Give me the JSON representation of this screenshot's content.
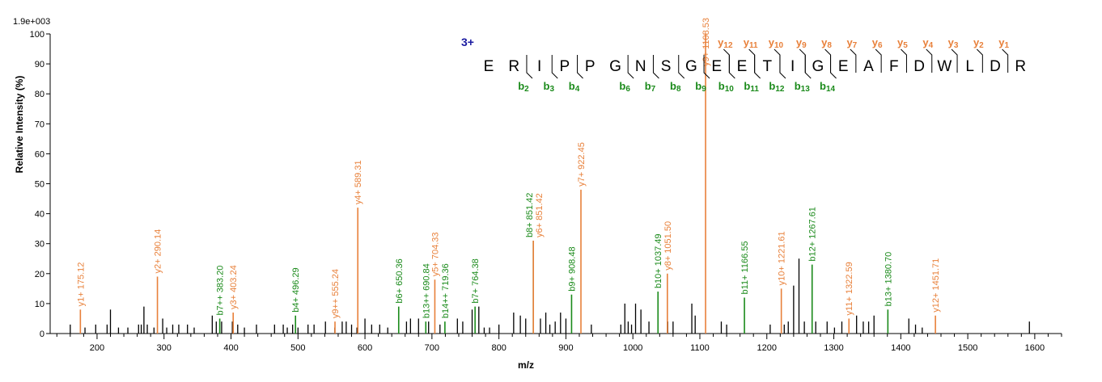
{
  "chart_data": {
    "type": "bar",
    "max_intensity_label": "1.9e+003",
    "xlabel": "m/z",
    "ylabel": "Relative   Intensity (%)",
    "xlim": [
      130,
      1640
    ],
    "ylim": [
      0,
      100
    ],
    "x_ticks": [
      200,
      300,
      400,
      500,
      600,
      700,
      800,
      900,
      1000,
      1100,
      1200,
      1300,
      1400,
      1500,
      1600
    ],
    "y_ticks": [
      0,
      10,
      20,
      30,
      40,
      50,
      60,
      70,
      80,
      90,
      100
    ],
    "colors": {
      "y_ion": "#e8803a",
      "b_ion": "#1a8a1a",
      "unassigned": "#000000",
      "charge": "#1a1aa0"
    },
    "precursor_charge": "3+",
    "sequence": [
      "E",
      "R",
      "I",
      "P",
      "P",
      "G",
      "N",
      "S",
      "G",
      "E",
      "E",
      "T",
      "I",
      "G",
      "E",
      "A",
      "F",
      "D",
      "W",
      "L",
      "D",
      "R"
    ],
    "y_ion_markers": [
      {
        "label": "y",
        "sub": "12",
        "after_index": 9
      },
      {
        "label": "y",
        "sub": "11",
        "after_index": 10
      },
      {
        "label": "y",
        "sub": "10",
        "after_index": 11
      },
      {
        "label": "y",
        "sub": "9",
        "after_index": 12
      },
      {
        "label": "y",
        "sub": "8",
        "after_index": 13
      },
      {
        "label": "y",
        "sub": "7",
        "after_index": 14
      },
      {
        "label": "y",
        "sub": "6",
        "after_index": 15
      },
      {
        "label": "y",
        "sub": "5",
        "after_index": 16
      },
      {
        "label": "y",
        "sub": "4",
        "after_index": 17
      },
      {
        "label": "y",
        "sub": "3",
        "after_index": 18
      },
      {
        "label": "y",
        "sub": "2",
        "after_index": 19
      },
      {
        "label": "y",
        "sub": "1",
        "after_index": 20
      }
    ],
    "b_ion_markers": [
      {
        "label": "b",
        "sub": "2",
        "after_index": 1
      },
      {
        "label": "b",
        "sub": "3",
        "after_index": 2
      },
      {
        "label": "b",
        "sub": "4",
        "after_index": 3
      },
      {
        "label": "b",
        "sub": "6",
        "after_index": 5
      },
      {
        "label": "b",
        "sub": "7",
        "after_index": 6
      },
      {
        "label": "b",
        "sub": "8",
        "after_index": 7
      },
      {
        "label": "b",
        "sub": "9",
        "after_index": 8
      },
      {
        "label": "b",
        "sub": "10",
        "after_index": 9
      },
      {
        "label": "b",
        "sub": "11",
        "after_index": 10
      },
      {
        "label": "b",
        "sub": "12",
        "after_index": 11
      },
      {
        "label": "b",
        "sub": "13",
        "after_index": 12
      },
      {
        "label": "b",
        "sub": "14",
        "after_index": 13
      }
    ],
    "annotated_peaks": [
      {
        "mz": 175.12,
        "intensity": 8,
        "type": "y",
        "label": "y1+ 175.12"
      },
      {
        "mz": 290.14,
        "intensity": 19,
        "type": "y",
        "label": "y2+ 290.14"
      },
      {
        "mz": 383.2,
        "intensity": 5,
        "type": "b",
        "label": "b7++ 383.20"
      },
      {
        "mz": 403.24,
        "intensity": 7,
        "type": "y",
        "label": "y3+ 403.24"
      },
      {
        "mz": 496.29,
        "intensity": 6,
        "type": "b",
        "label": "b4+ 496.29"
      },
      {
        "mz": 555.24,
        "intensity": 4,
        "type": "y",
        "label": "y9++ 555.24"
      },
      {
        "mz": 589.31,
        "intensity": 42,
        "type": "y",
        "label": "y4+ 589.31"
      },
      {
        "mz": 650.36,
        "intensity": 9,
        "type": "b",
        "label": "b6+ 650.36"
      },
      {
        "mz": 690.84,
        "intensity": 4,
        "type": "b",
        "label": "b13++ 690.84"
      },
      {
        "mz": 704.33,
        "intensity": 18,
        "type": "y",
        "label": "y5+ 704.33"
      },
      {
        "mz": 719.36,
        "intensity": 4,
        "type": "b",
        "label": "b14++ 719.36"
      },
      {
        "mz": 764.38,
        "intensity": 9,
        "type": "b",
        "label": "b7+ 764.38"
      },
      {
        "mz": 851.42,
        "intensity": 31,
        "type": "b",
        "label": "b8+ 851.42"
      },
      {
        "mz": 851.42,
        "intensity": 31,
        "type": "y",
        "label": "y6+ 851.42"
      },
      {
        "mz": 908.48,
        "intensity": 13,
        "type": "b",
        "label": "b9+ 908.48"
      },
      {
        "mz": 922.45,
        "intensity": 48,
        "type": "y",
        "label": "y7+ 922.45"
      },
      {
        "mz": 1037.49,
        "intensity": 14,
        "type": "b",
        "label": "b10+ 1037.49"
      },
      {
        "mz": 1051.5,
        "intensity": 20,
        "type": "y",
        "label": "y8+ 1051.50"
      },
      {
        "mz": 1108.53,
        "intensity": 100,
        "type": "y",
        "label": "y9+ 1108.53"
      },
      {
        "mz": 1166.55,
        "intensity": 12,
        "type": "b",
        "label": "b11+ 1166.55"
      },
      {
        "mz": 1221.61,
        "intensity": 15,
        "type": "y",
        "label": "y10+ 1221.61"
      },
      {
        "mz": 1267.61,
        "intensity": 23,
        "type": "b",
        "label": "b12+ 1267.61"
      },
      {
        "mz": 1322.59,
        "intensity": 5,
        "type": "y",
        "label": "y11+ 1322.59"
      },
      {
        "mz": 1380.7,
        "intensity": 8,
        "type": "b",
        "label": "b13+ 1380.70"
      },
      {
        "mz": 1451.71,
        "intensity": 6,
        "type": "y",
        "label": "y12+ 1451.71"
      }
    ],
    "unassigned_peaks": [
      [
        160,
        3
      ],
      [
        182,
        2
      ],
      [
        198,
        3
      ],
      [
        215,
        3
      ],
      [
        220,
        8
      ],
      [
        232,
        2
      ],
      [
        246,
        2
      ],
      [
        262,
        3
      ],
      [
        266,
        3
      ],
      [
        270,
        9
      ],
      [
        275,
        3
      ],
      [
        285,
        2
      ],
      [
        298,
        5
      ],
      [
        304,
        2
      ],
      [
        313,
        3
      ],
      [
        322,
        3
      ],
      [
        335,
        3
      ],
      [
        345,
        2
      ],
      [
        372,
        6
      ],
      [
        378,
        4
      ],
      [
        386,
        4
      ],
      [
        402,
        4
      ],
      [
        410,
        3
      ],
      [
        420,
        2
      ],
      [
        438,
        3
      ],
      [
        465,
        3
      ],
      [
        478,
        3
      ],
      [
        484,
        2
      ],
      [
        492,
        3
      ],
      [
        500,
        2
      ],
      [
        515,
        3
      ],
      [
        524,
        3
      ],
      [
        541,
        4
      ],
      [
        555,
        2
      ],
      [
        566,
        4
      ],
      [
        572,
        4
      ],
      [
        580,
        3
      ],
      [
        588,
        2
      ],
      [
        600,
        5
      ],
      [
        610,
        3
      ],
      [
        622,
        3
      ],
      [
        634,
        2
      ],
      [
        662,
        4
      ],
      [
        668,
        5
      ],
      [
        680,
        5
      ],
      [
        695,
        4
      ],
      [
        712,
        3
      ],
      [
        738,
        5
      ],
      [
        746,
        4
      ],
      [
        760,
        8
      ],
      [
        770,
        9
      ],
      [
        778,
        2
      ],
      [
        786,
        2
      ],
      [
        800,
        3
      ],
      [
        822,
        7
      ],
      [
        832,
        6
      ],
      [
        840,
        5
      ],
      [
        862,
        5
      ],
      [
        870,
        7
      ],
      [
        876,
        3
      ],
      [
        884,
        4
      ],
      [
        892,
        7
      ],
      [
        900,
        5
      ],
      [
        938,
        3
      ],
      [
        982,
        3
      ],
      [
        988,
        10
      ],
      [
        993,
        4
      ],
      [
        998,
        3
      ],
      [
        1004,
        10
      ],
      [
        1012,
        8
      ],
      [
        1024,
        4
      ],
      [
        1052,
        4
      ],
      [
        1060,
        4
      ],
      [
        1088,
        10
      ],
      [
        1093,
        6
      ],
      [
        1132,
        4
      ],
      [
        1140,
        3
      ],
      [
        1205,
        3
      ],
      [
        1226,
        3
      ],
      [
        1232,
        4
      ],
      [
        1240,
        16
      ],
      [
        1248,
        25
      ],
      [
        1256,
        4
      ],
      [
        1273,
        4
      ],
      [
        1290,
        4
      ],
      [
        1301,
        2
      ],
      [
        1312,
        4
      ],
      [
        1334,
        6
      ],
      [
        1344,
        4
      ],
      [
        1352,
        4
      ],
      [
        1360,
        6
      ],
      [
        1412,
        5
      ],
      [
        1422,
        3
      ],
      [
        1432,
        2
      ],
      [
        1592,
        4
      ]
    ]
  }
}
